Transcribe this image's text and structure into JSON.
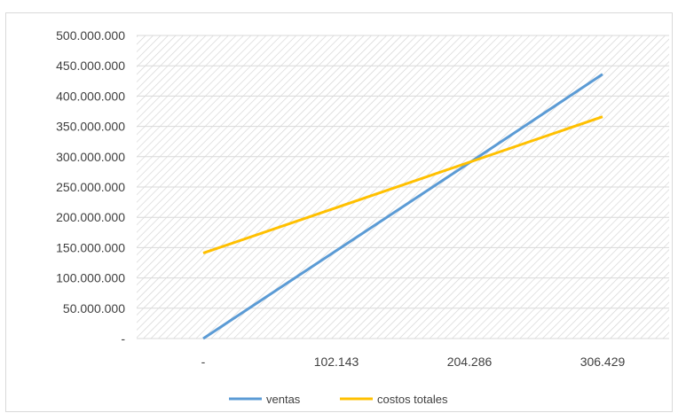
{
  "chart_data": {
    "type": "line",
    "title": "",
    "xlabel": "",
    "ylabel": "",
    "categories": [
      "-",
      "102.143",
      "204.286",
      "306.429"
    ],
    "x": [
      0,
      102143,
      204286,
      306429
    ],
    "series": [
      {
        "name": "ventas",
        "color": "#5b9bd5",
        "values": [
          0,
          145000000,
          290000000,
          436000000
        ]
      },
      {
        "name": "costos totales",
        "color": "#ffc000",
        "values": [
          141000000,
          216000000,
          291000000,
          366000000
        ]
      }
    ],
    "ylim": [
      0,
      500000000
    ],
    "y_ticks": [
      {
        "value": 500000000,
        "label": "500.000.000"
      },
      {
        "value": 450000000,
        "label": "450.000.000"
      },
      {
        "value": 400000000,
        "label": "400.000.000"
      },
      {
        "value": 350000000,
        "label": "350.000.000"
      },
      {
        "value": 300000000,
        "label": "300.000.000"
      },
      {
        "value": 250000000,
        "label": "250.000.000"
      },
      {
        "value": 200000000,
        "label": "200.000.000"
      },
      {
        "value": 150000000,
        "label": "150.000.000"
      },
      {
        "value": 100000000,
        "label": "100.000.000"
      },
      {
        "value": 50000000,
        "label": "50.000.000"
      },
      {
        "value": 0,
        "label": "-"
      }
    ],
    "grid": true,
    "plot_background": "hatched",
    "legend_position": "bottom"
  }
}
